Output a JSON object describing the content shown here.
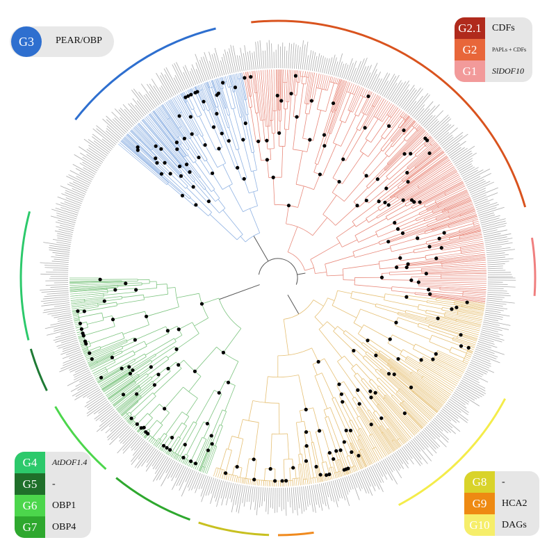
{
  "figure": {
    "center_color": "#555555",
    "tip_color": "#aaaaaa",
    "marker_color": "#000000"
  },
  "clades": [
    {
      "id": "G1-G2",
      "color": "#e8887a",
      "arc": [
        -100,
        7
      ]
    },
    {
      "id": "G3",
      "color": "#8fb2e3",
      "arc": [
        -140,
        -100
      ]
    },
    {
      "id": "G4-G7",
      "color": "#7cc47f",
      "arc": [
        -180,
        -250
      ]
    },
    {
      "id": "G8-G10",
      "color": "#e6c075",
      "arc": [
        7,
        108
      ]
    }
  ],
  "outer_arcs": [
    {
      "group": "G2.1",
      "color": "#d9531e",
      "arc": [
        -96,
        -16
      ]
    },
    {
      "group": "G1",
      "color": "#f07f7f",
      "arc": [
        -9,
        4
      ]
    },
    {
      "group": "G3",
      "color": "#2e6fcf",
      "arc": [
        -142,
        -104
      ]
    },
    {
      "group": "G4",
      "color": "#2cc96b",
      "arc": [
        -194,
        -165
      ]
    },
    {
      "group": "G5",
      "color": "#1f7a35",
      "arc": [
        -206,
        -196
      ]
    },
    {
      "group": "G6",
      "color": "#4cd64c",
      "arc": [
        -228,
        -210
      ]
    },
    {
      "group": "G7",
      "color": "#2ea82e",
      "arc": [
        -250,
        -231
      ]
    },
    {
      "group": "G8",
      "color": "#c8c020",
      "arc": [
        -268,
        -252
      ]
    },
    {
      "group": "G9",
      "color": "#f08a1e",
      "arc": [
        -278,
        -270
      ]
    },
    {
      "group": "G10",
      "color": "#f4ec4a",
      "arc": [
        -332,
        -298
      ]
    }
  ],
  "legend_g3": {
    "badge": "G3",
    "label": "PEAR/OBP",
    "color": "#2e6fcf"
  },
  "legend_top_right": [
    {
      "badge": "G2.1",
      "label": "CDFs",
      "color": "#b02a1c",
      "style": "normal"
    },
    {
      "badge": "G2",
      "label": "PAPLs + CDFs",
      "color": "#e8663a",
      "style": "small"
    },
    {
      "badge": "G1",
      "label": "SlDOF10",
      "color": "#f29a9a",
      "style": "ital"
    }
  ],
  "legend_bottom_left": [
    {
      "badge": "G4",
      "label": "AtDOF1.4",
      "color": "#2cc96b",
      "style": "ital"
    },
    {
      "badge": "G5",
      "label": "-",
      "color": "#1f6f2a",
      "style": "normal"
    },
    {
      "badge": "G6",
      "label": "OBP1",
      "color": "#4cd64c",
      "style": "normal"
    },
    {
      "badge": "G7",
      "label": "OBP4",
      "color": "#2ea82e",
      "style": "normal"
    }
  ],
  "legend_bottom_right": [
    {
      "badge": "G8",
      "label": "-",
      "color": "#d9d32a",
      "style": "normal"
    },
    {
      "badge": "G9",
      "label": "HCA2",
      "color": "#ee8a12",
      "style": "normal"
    },
    {
      "badge": "G10",
      "label": "DAGs",
      "color": "#f6ee6a",
      "style": "normal"
    }
  ]
}
